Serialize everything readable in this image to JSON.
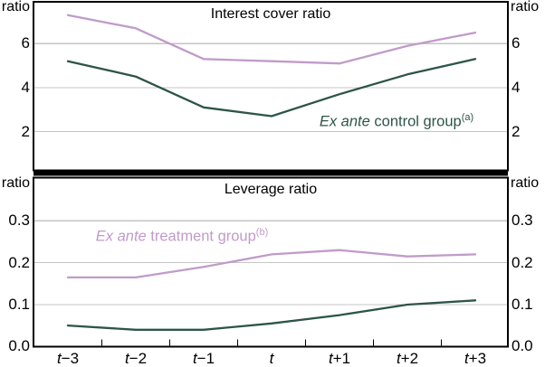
{
  "colors": {
    "treatment": "#c19bc9",
    "control": "#2d5547",
    "grid": "#c5c5c5",
    "axis": "#000000"
  },
  "chart_data": [
    {
      "type": "line",
      "title": "Interest cover ratio",
      "ylabel": "ratio",
      "ylim": [
        0,
        8
      ],
      "grid": true,
      "legend_position": "inline-annotation",
      "yticks": [
        {
          "value": 6,
          "label": "6"
        },
        {
          "value": 4,
          "label": "4"
        },
        {
          "value": 2,
          "label": "2"
        }
      ],
      "x_categories": [
        "t−3",
        "t−2",
        "t−1",
        "t",
        "t+1",
        "t+2",
        "t+3"
      ],
      "series": [
        {
          "name": "Ex ante treatment group",
          "color_key": "treatment",
          "values": [
            7.3,
            6.7,
            5.3,
            5.2,
            5.1,
            5.9,
            6.5
          ]
        },
        {
          "name": "Ex ante control group",
          "color_key": "control",
          "values": [
            5.2,
            4.5,
            3.1,
            2.7,
            3.7,
            4.6,
            5.3
          ]
        }
      ],
      "annotation": {
        "italic": "Ex ante",
        "text": " control group",
        "sup": "(a)"
      }
    },
    {
      "type": "line",
      "title": "Leverage ratio",
      "ylabel": "ratio",
      "ylim": [
        0,
        0.4
      ],
      "grid": true,
      "legend_position": "inline-annotation",
      "yticks": [
        {
          "value": 0.3,
          "label": "0.3"
        },
        {
          "value": 0.2,
          "label": "0.2"
        },
        {
          "value": 0.1,
          "label": "0.1"
        },
        {
          "value": 0.0,
          "label": "0.0"
        }
      ],
      "x_categories": [
        "t−3",
        "t−2",
        "t−1",
        "t",
        "t+1",
        "t+2",
        "t+3"
      ],
      "series": [
        {
          "name": "Ex ante treatment group",
          "color_key": "treatment",
          "values": [
            0.165,
            0.165,
            0.19,
            0.22,
            0.23,
            0.215,
            0.22
          ]
        },
        {
          "name": "Ex ante control group",
          "color_key": "control",
          "values": [
            0.05,
            0.04,
            0.04,
            0.055,
            0.075,
            0.1,
            0.11
          ]
        }
      ],
      "annotation": {
        "italic": "Ex ante",
        "text": " treatment group",
        "sup": "(b)"
      }
    }
  ]
}
